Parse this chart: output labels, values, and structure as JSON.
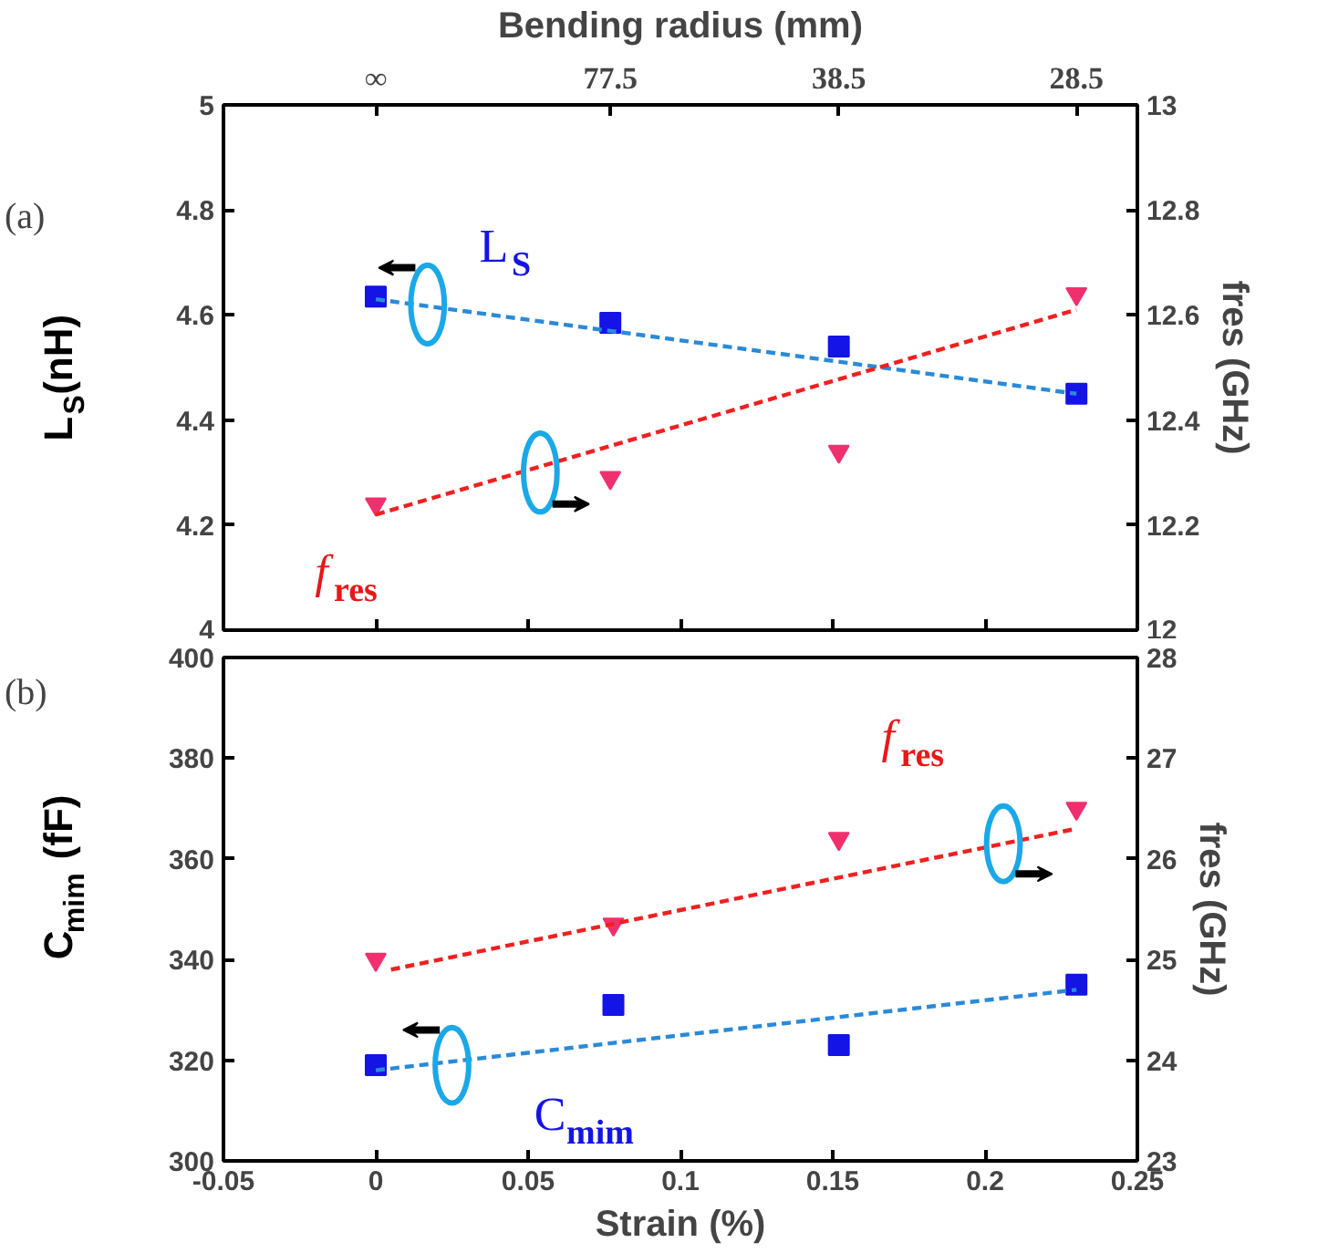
{
  "chart_data": [
    {
      "type": "scatter",
      "x2label": "Bending radius (mm)",
      "ylabel": "L$_{S}$(nH)",
      "y2label": "fres (GHz)",
      "xlim": [
        -0.05,
        0.25
      ],
      "xticks": [
        -0.05,
        0,
        0.05,
        0.1,
        0.15,
        0.2,
        0.25
      ],
      "ylim": [
        4,
        5
      ],
      "yticks": [
        4,
        4.2,
        4.4,
        4.6,
        4.8,
        5
      ],
      "y2lim": [
        12,
        13
      ],
      "y2ticks": [
        12,
        12.2,
        12.4,
        12.6,
        12.8,
        13
      ],
      "tick_labels": "y",
      "grid": false,
      "x": [
        0,
        0.077,
        0.152,
        0.23
      ],
      "series": [
        {
          "marker": "square",
          "color": "#1414e6",
          "values": [
            4.635,
            4.585,
            4.54,
            4.45
          ]
        },
        {
          "marker": "triangle",
          "axis": "y2",
          "color": "#f0306e",
          "values": [
            12.24,
            12.29,
            12.34,
            12.64
          ]
        },
        {
          "type": "line",
          "line_style": "dashed",
          "color": "#2a8ad8",
          "x": [
            0,
            0.23
          ],
          "values": [
            4.63,
            4.45
          ]
        },
        {
          "type": "line",
          "line_style": "dashed",
          "axis": "y2",
          "color": "#f02020",
          "x": [
            0,
            0.23
          ],
          "values": [
            12.22,
            12.61
          ]
        }
      ],
      "annotations": [
        "(a)",
        "L$_{S}$",
        "f$_{res}$",
        "∞",
        "77.5",
        "38.5",
        "28.5"
      ]
    },
    {
      "type": "scatter",
      "xlabel": "Strain (%)",
      "ylabel": "C$_{mim}$ (fF)",
      "y2label": "fres (GHz)",
      "xlim": [
        -0.05,
        0.25
      ],
      "xticks": [
        -0.05,
        0,
        0.05,
        0.1,
        0.15,
        0.2,
        0.25
      ],
      "ylim": [
        300,
        400
      ],
      "yticks": [
        300,
        320,
        340,
        360,
        380,
        400
      ],
      "y2lim": [
        23,
        28
      ],
      "y2ticks": [
        23,
        24,
        25,
        26,
        27,
        28
      ],
      "grid": false,
      "x": [
        0,
        0.078,
        0.152,
        0.23
      ],
      "series": [
        {
          "marker": "square",
          "color": "#1414e6",
          "values": [
            319,
            331,
            323,
            335
          ]
        },
        {
          "marker": "triangle",
          "axis": "y2",
          "color": "#f0306e",
          "values": [
            25.0,
            25.35,
            26.2,
            26.5
          ]
        },
        {
          "type": "line",
          "line_style": "dashed",
          "color": "#2a8ad8",
          "x": [
            0,
            0.23
          ],
          "values": [
            318,
            334
          ]
        },
        {
          "type": "line",
          "line_style": "dashed",
          "axis": "y2",
          "color": "#f02020",
          "x": [
            0.005,
            0.23
          ],
          "values": [
            24.9,
            26.3
          ]
        }
      ],
      "annotations": [
        "(b)",
        "f$_{res}$",
        "C$_{mim}$"
      ]
    }
  ]
}
